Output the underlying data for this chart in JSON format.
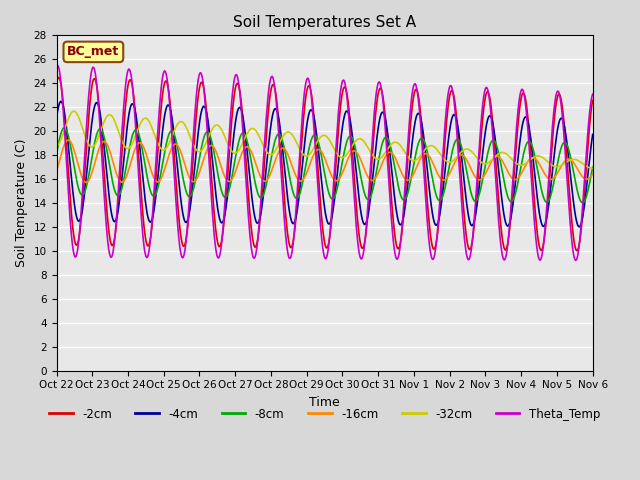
{
  "title": "Soil Temperatures Set A",
  "xlabel": "Time",
  "ylabel": "Soil Temperature (C)",
  "ylim": [
    0,
    28
  ],
  "yticks": [
    0,
    2,
    4,
    6,
    8,
    10,
    12,
    14,
    16,
    18,
    20,
    22,
    24,
    26,
    28
  ],
  "xtick_labels": [
    "Oct 22",
    "Oct 23",
    "Oct 24",
    "Oct 25",
    "Oct 26",
    "Oct 27",
    "Oct 28",
    "Oct 29",
    "Oct 30",
    "Oct 31",
    "Nov 1",
    "Nov 2",
    "Nov 3",
    "Nov 4",
    "Nov 5",
    "Nov 6"
  ],
  "annotation_text": "BC_met",
  "annotation_facecolor": "#ffff99",
  "annotation_edgecolor": "#8B4513",
  "annotation_textcolor": "#8B0000",
  "background_color": "#d8d8d8",
  "plot_bg_color": "#e8e8e8",
  "grid_color": "#ffffff",
  "series": [
    {
      "label": "-2cm",
      "color": "#dd0000",
      "lw": 1.2
    },
    {
      "label": "-4cm",
      "color": "#000099",
      "lw": 1.2
    },
    {
      "label": "-8cm",
      "color": "#00aa00",
      "lw": 1.2
    },
    {
      "label": "-16cm",
      "color": "#ff8800",
      "lw": 1.2
    },
    {
      "label": "-32cm",
      "color": "#cccc00",
      "lw": 1.2
    },
    {
      "label": "Theta_Temp",
      "color": "#cc00cc",
      "lw": 1.2
    }
  ]
}
